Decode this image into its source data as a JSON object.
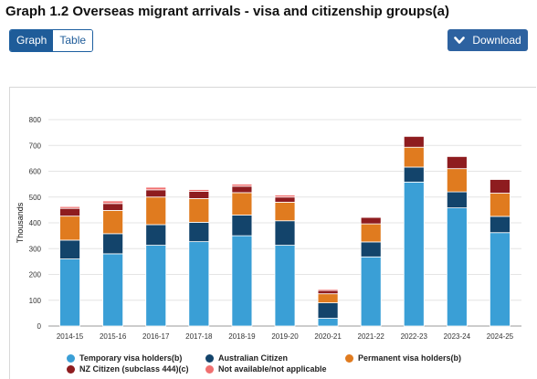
{
  "title": "Graph 1.2 Overseas migrant arrivals - visa and citizenship groups(a)",
  "view_toggle": {
    "graph_label": "Graph",
    "table_label": "Table",
    "selected": "Graph"
  },
  "download": {
    "label": "Download",
    "icon": "chevron-down-icon"
  },
  "colors": {
    "temporary": "#3a9fd6",
    "australian": "#13446b",
    "permanent": "#e07b1f",
    "nz": "#8e1c1f",
    "not_available": "#f07070",
    "accent": "#2d62a0"
  },
  "chart_data": {
    "type": "bar",
    "stacked": true,
    "ylabel": "Thousands",
    "ylim": [
      0,
      800
    ],
    "yticks": [
      0,
      100,
      200,
      300,
      400,
      500,
      600,
      700,
      800
    ],
    "grid": true,
    "legend_position": "bottom",
    "categories": [
      "2014-15",
      "2015-16",
      "2016-17",
      "2017-18",
      "2018-19",
      "2019-20",
      "2020-21",
      "2021-22",
      "2022-23",
      "2023-24",
      "2024-25"
    ],
    "series": [
      {
        "name": "Temporary visa holders(b)",
        "key": "temporary",
        "values": [
          260,
          280,
          313,
          327,
          350,
          313,
          30,
          268,
          558,
          458,
          362
        ]
      },
      {
        "name": "Australian Citizen",
        "key": "australian",
        "values": [
          73,
          78,
          80,
          75,
          80,
          95,
          60,
          58,
          58,
          62,
          63
        ]
      },
      {
        "name": "Permanent visa holders(b)",
        "key": "permanent",
        "values": [
          93,
          90,
          107,
          92,
          87,
          72,
          35,
          70,
          77,
          90,
          90
        ]
      },
      {
        "name": "NZ Citizen (subclass 444)(c)",
        "key": "nz",
        "values": [
          30,
          27,
          28,
          28,
          25,
          20,
          13,
          25,
          42,
          47,
          53
        ]
      },
      {
        "name": "Not available/not applicable",
        "key": "not_available",
        "values": [
          7,
          10,
          10,
          7,
          8,
          8,
          5,
          3,
          0,
          0,
          0
        ]
      }
    ]
  }
}
